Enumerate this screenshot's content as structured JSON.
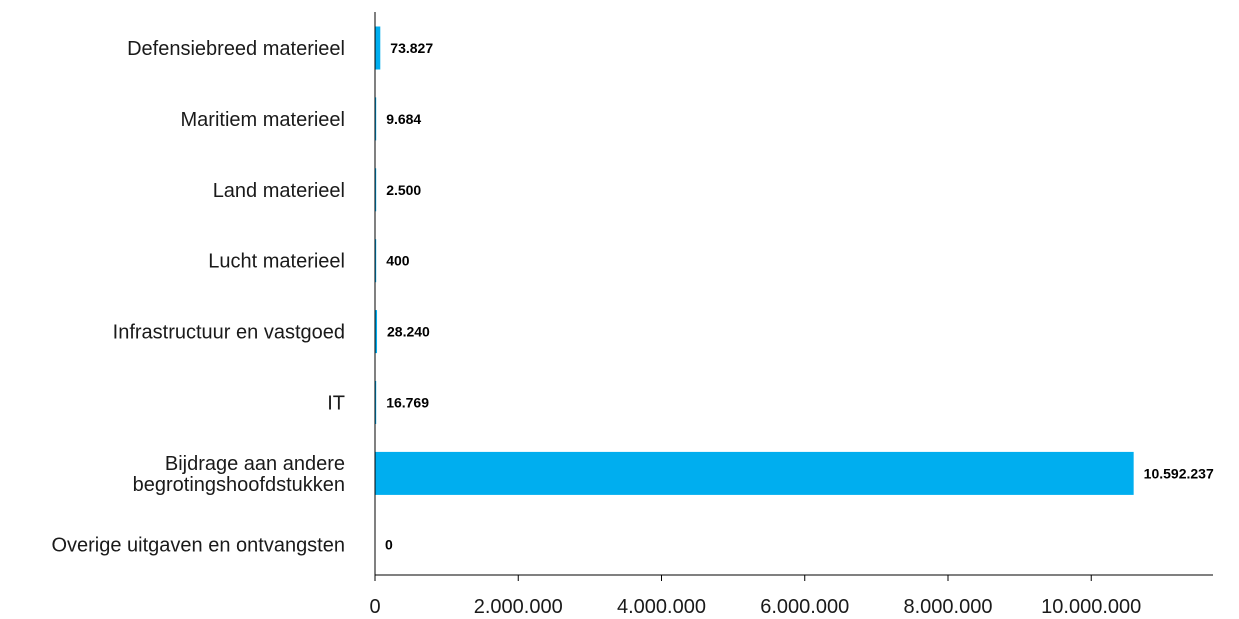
{
  "chart_data": {
    "type": "bar",
    "orientation": "horizontal",
    "categories": [
      [
        "Defensiebreed materieel"
      ],
      [
        "Maritiem materieel"
      ],
      [
        "Land materieel"
      ],
      [
        "Lucht materieel"
      ],
      [
        "Infrastructuur en vastgoed"
      ],
      [
        "IT"
      ],
      [
        "Bijdrage aan andere",
        "begrotingshoofdstukken"
      ],
      [
        "Overige uitgaven en ontvangsten"
      ]
    ],
    "values": [
      73827,
      9684,
      2500,
      400,
      28240,
      16769,
      10592237,
      0
    ],
    "value_labels": [
      "73.827",
      "9.684",
      "2.500",
      "400",
      "28.240",
      "16.769",
      "10.592.237",
      "0"
    ],
    "xlim": [
      0,
      11700000
    ],
    "xticks": [
      0,
      2000000,
      4000000,
      6000000,
      8000000,
      10000000
    ],
    "xtick_labels": [
      "0",
      "2.000.000",
      "4.000.000",
      "6.000.000",
      "8.000.000",
      "10.000.000"
    ],
    "bar_color": "#00aeef",
    "grid": false,
    "legend": false
  }
}
